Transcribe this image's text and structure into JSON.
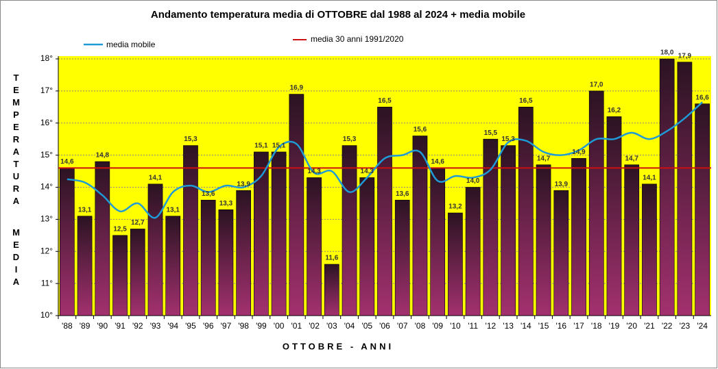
{
  "chart_data": {
    "type": "bar",
    "title": "Andamento temperatura media di OTTOBRE dal 1988 al 2024 + media mobile",
    "xlabel": "OTTOBRE - ANNI",
    "ylabel": [
      "TEMPERATURA",
      "MEDIA"
    ],
    "categories": [
      "'88",
      "'89",
      "'90",
      "'91",
      "'92",
      "'93",
      "'94",
      "'95",
      "'96",
      "'97",
      "'98",
      "'99",
      "'00",
      "'01",
      "'02",
      "'03",
      "'04",
      "'05",
      "'06",
      "'07",
      "'08",
      "'09",
      "'10",
      "'11",
      "'12",
      "'13",
      "'14",
      "'15",
      "'16",
      "'17",
      "'18",
      "'19",
      "'20",
      "'21",
      "'22",
      "'23",
      "'24"
    ],
    "values": [
      14.6,
      13.1,
      14.8,
      12.5,
      12.7,
      14.1,
      13.1,
      15.3,
      13.6,
      13.3,
      13.9,
      15.1,
      15.1,
      16.9,
      14.3,
      11.6,
      15.3,
      14.3,
      16.5,
      13.6,
      15.6,
      14.6,
      13.2,
      14.0,
      15.5,
      15.3,
      16.5,
      14.7,
      13.9,
      14.9,
      17.0,
      16.2,
      14.7,
      14.1,
      18.0,
      17.9,
      16.6
    ],
    "value_labels": [
      "14,6",
      "13,1",
      "14,8",
      "12,5",
      "12,7",
      "14,1",
      "13,1",
      "15,3",
      "13,6",
      "13,3",
      "13,9",
      "15,1",
      "15,1",
      "16,9",
      "14,3",
      "11,6",
      "15,3",
      "14,3",
      "16,5",
      "13,6",
      "15,6",
      "14,6",
      "13,2",
      "14,0",
      "15,5",
      "15,3",
      "16,5",
      "14,7",
      "13,9",
      "14,9",
      "17,0",
      "16,2",
      "14,7",
      "14,1",
      "18,0",
      "17,9",
      "16,6"
    ],
    "bar_gradient": [
      "#2b1322",
      "#a3316f"
    ],
    "series": [
      {
        "name": "media mobile",
        "type": "line",
        "color": "#1e9bd7",
        "values": [
          14.25,
          14.15,
          13.75,
          13.25,
          13.5,
          13.05,
          13.85,
          14.05,
          13.85,
          14.05,
          14.0,
          14.35,
          15.25,
          15.35,
          14.45,
          14.5,
          13.85,
          14.3,
          14.9,
          15.0,
          15.1,
          14.2,
          14.35,
          14.3,
          14.55,
          15.4,
          15.45,
          15.1,
          15.0,
          15.15,
          15.5,
          15.5,
          15.7,
          15.5,
          15.75,
          16.15,
          16.65
        ]
      }
    ],
    "reference_line": {
      "name": "media 30 anni 1991/2020",
      "value": 14.6,
      "color": "#cc1010"
    },
    "ylim": [
      10,
      18
    ],
    "yticks": [
      {
        "value": 10,
        "label": "10°"
      },
      {
        "value": 11,
        "label": "11°"
      },
      {
        "value": 12,
        "label": "12°"
      },
      {
        "value": 13,
        "label": "13°"
      },
      {
        "value": 14,
        "label": "14°"
      },
      {
        "value": 15,
        "label": "15°"
      },
      {
        "value": 16,
        "label": "16°"
      },
      {
        "value": 17,
        "label": "17°"
      },
      {
        "value": 18,
        "label": "18°"
      }
    ],
    "grid": true,
    "plot_background": "#ffff00"
  }
}
